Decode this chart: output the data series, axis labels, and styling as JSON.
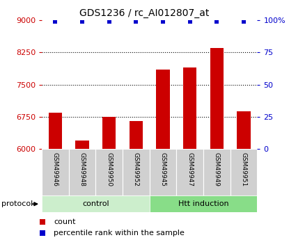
{
  "title": "GDS1236 / rc_AI012807_at",
  "samples": [
    "GSM49946",
    "GSM49948",
    "GSM49950",
    "GSM49952",
    "GSM49945",
    "GSM49947",
    "GSM49949",
    "GSM49951"
  ],
  "counts": [
    6850,
    6200,
    6750,
    6650,
    7850,
    7900,
    8350,
    6875
  ],
  "percentile_ranks": [
    99,
    99,
    99,
    99,
    99,
    99,
    99,
    99
  ],
  "bar_color": "#cc0000",
  "dot_color": "#0000cc",
  "ymin": 6000,
  "ymax": 9000,
  "ylim_right": [
    0,
    100
  ],
  "yticks_left": [
    6000,
    6750,
    7500,
    8250,
    9000
  ],
  "yticks_right": [
    0,
    25,
    50,
    75,
    100
  ],
  "grid_vals": [
    6750,
    7500,
    8250
  ],
  "groups": [
    {
      "label": "control",
      "start": 0,
      "end": 4,
      "color": "#cceecc"
    },
    {
      "label": "Htt induction",
      "start": 4,
      "end": 8,
      "color": "#88dd88"
    }
  ],
  "protocol_label": "protocol",
  "legend_items": [
    {
      "label": "count",
      "color": "#cc0000"
    },
    {
      "label": "percentile rank within the sample",
      "color": "#0000cc"
    }
  ],
  "left_axis_color": "#cc0000",
  "right_axis_color": "#0000cc",
  "label_box_color": "#d0d0d0",
  "bar_width": 0.5
}
